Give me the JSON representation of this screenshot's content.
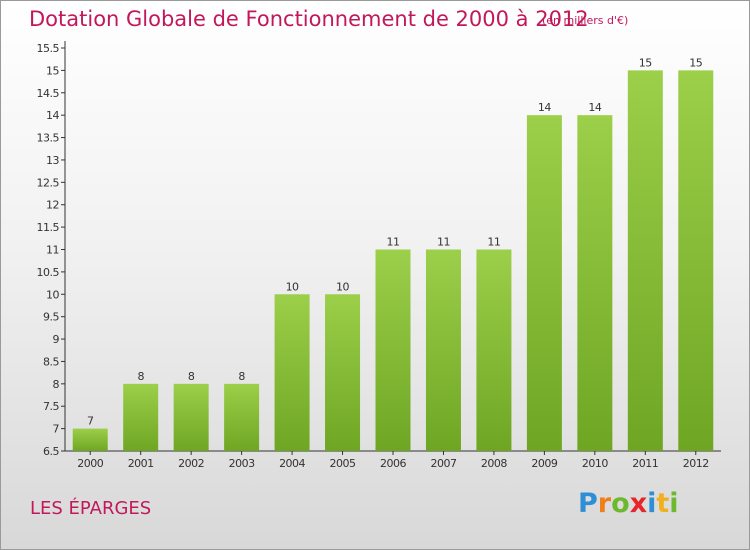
{
  "header": {
    "title": "Dotation Globale de Fonctionnement de 2000 à 2012",
    "unit_note": "(en milliers d'€)"
  },
  "footer": {
    "commune": "LES ÉPARGES",
    "logo_letters": [
      {
        "char": "P",
        "color": "#2e8fd6"
      },
      {
        "char": "r",
        "color": "#f07f1a"
      },
      {
        "char": "o",
        "color": "#6cb82f"
      },
      {
        "char": "x",
        "color": "#e8262a"
      },
      {
        "char": "i",
        "color": "#2e8fd6"
      },
      {
        "char": "t",
        "color": "#f2b01e"
      },
      {
        "char": "i",
        "color": "#6cb82f"
      }
    ]
  },
  "chart_data": {
    "type": "bar",
    "categories": [
      "2000",
      "2001",
      "2002",
      "2003",
      "2004",
      "2005",
      "2006",
      "2007",
      "2008",
      "2009",
      "2010",
      "2011",
      "2012"
    ],
    "values": [
      7,
      8,
      8,
      8,
      10,
      10,
      11,
      11,
      11,
      14,
      14,
      15,
      15
    ],
    "data_labels": [
      "7",
      "8",
      "8",
      "8",
      "10",
      "10",
      "11",
      "11",
      "11",
      "14",
      "14",
      "15",
      "15"
    ],
    "yticks": [
      "6.5",
      "7",
      "7.5",
      "8",
      "8.5",
      "9",
      "9.5",
      "10",
      "10.5",
      "11",
      "11.5",
      "12",
      "12.5",
      "13",
      "13.5",
      "14",
      "14.5",
      "15",
      "15.5"
    ],
    "ylim": [
      6.5,
      15.5
    ],
    "grid": false,
    "bar_color_top": "#9ccf4a",
    "bar_color_bottom": "#6ea623"
  }
}
